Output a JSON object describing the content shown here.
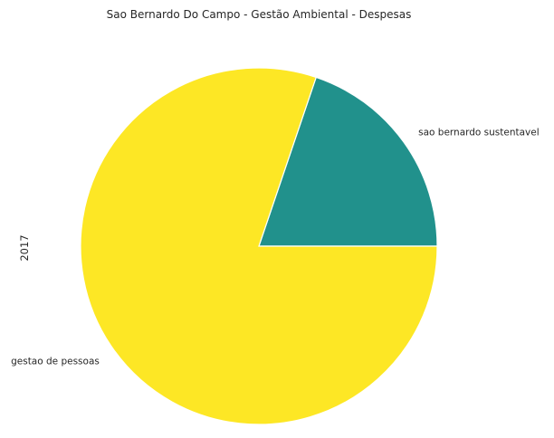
{
  "chart_data": {
    "type": "pie",
    "title": "Sao Bernardo Do Campo - Gestão Ambiental - Despesas",
    "ylabel": "2017",
    "start_angle_deg": 0,
    "direction": "counterclockwise",
    "slices": [
      {
        "label": "sao bernardo sustentavel",
        "value": 19.8,
        "color": "#21918c"
      },
      {
        "label": "gestao de pessoas",
        "value": 80.2,
        "color": "#fde725"
      }
    ]
  }
}
